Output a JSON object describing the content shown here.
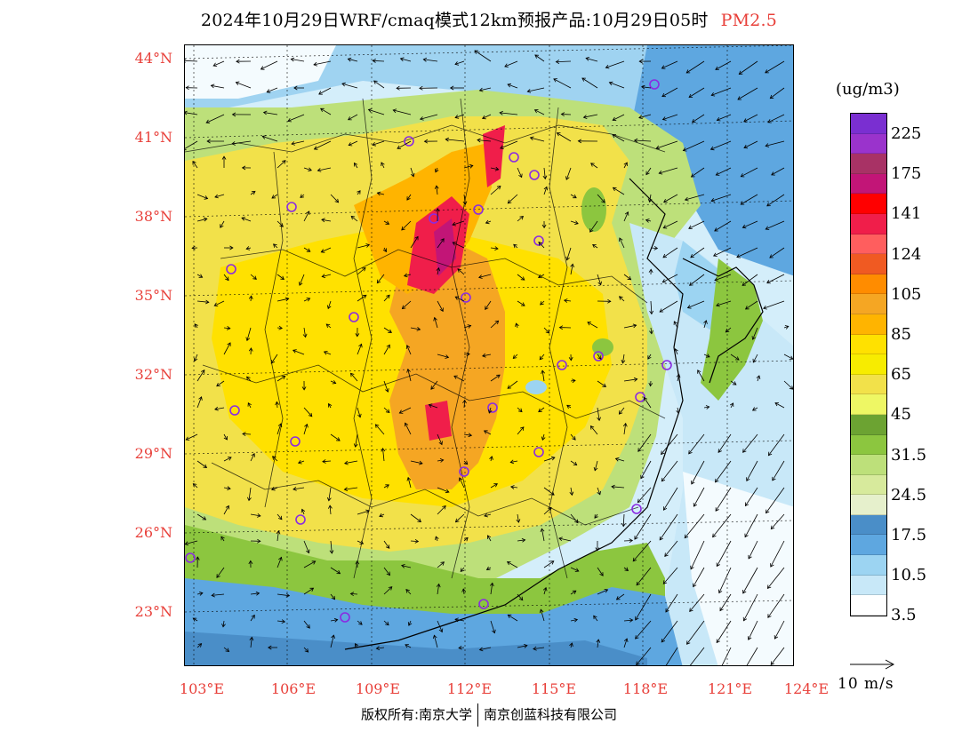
{
  "title": {
    "main": "2024年10月29日WRF/cmaq模式12km预报产品:10月29日05时",
    "pollutant": "PM2.5"
  },
  "axes": {
    "lat_labels": [
      "44°N",
      "41°N",
      "38°N",
      "35°N",
      "32°N",
      "29°N",
      "26°N",
      "23°N"
    ],
    "lon_labels": [
      "103°E",
      "106°E",
      "109°E",
      "112°E",
      "115°E",
      "118°E",
      "121°E",
      "124°E"
    ]
  },
  "colorbar": {
    "units": "(ug/m3)",
    "labels": [
      "225",
      "175",
      "141",
      "124",
      "105",
      "85",
      "65",
      "45",
      "31.5",
      "24.5",
      "17.5",
      "10.5",
      "3.5"
    ],
    "colors": [
      "#7a2fd1",
      "#9a33cc",
      "#a83265",
      "#c21577",
      "#ff0000",
      "#f01e4a",
      "#ff5e5e",
      "#f05a22",
      "#ff8c00",
      "#f5a623",
      "#ffb400",
      "#ffe100",
      "#f7ec00",
      "#f2e14a",
      "#eef764",
      "#6ca332",
      "#8cc63f",
      "#bde07a",
      "#d7ea9c",
      "#e6f0cc",
      "#4a8ec8",
      "#5ea7e0",
      "#9cd4f2",
      "#c8e8f8",
      "#ffffff"
    ]
  },
  "wind_reference": {
    "label": "10 m/s"
  },
  "footer": {
    "copyright_left": "版权所有:南京大学",
    "copyright_right": "南京创蓝科技有限公司"
  }
}
